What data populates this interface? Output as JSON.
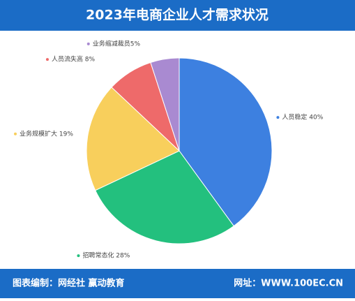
{
  "chart_data": {
    "type": "pie",
    "title": "2023年电商企业人才需求状况",
    "values": [
      40,
      28,
      19,
      8,
      5
    ],
    "value_labels": [
      "人员稳定 40%",
      "招聘常态化 28%",
      "业务规模扩大 19%",
      "人员流失高 8%",
      "业务缩减裁员5%"
    ],
    "colors": [
      "#3d80e0",
      "#23c07e",
      "#f8cf5c",
      "#ee6a6a",
      "#a98ad1"
    ]
  },
  "footer": {
    "left": "图表编制：网经社 赢动教育",
    "right": "网址：WWW.100EC.CN"
  }
}
